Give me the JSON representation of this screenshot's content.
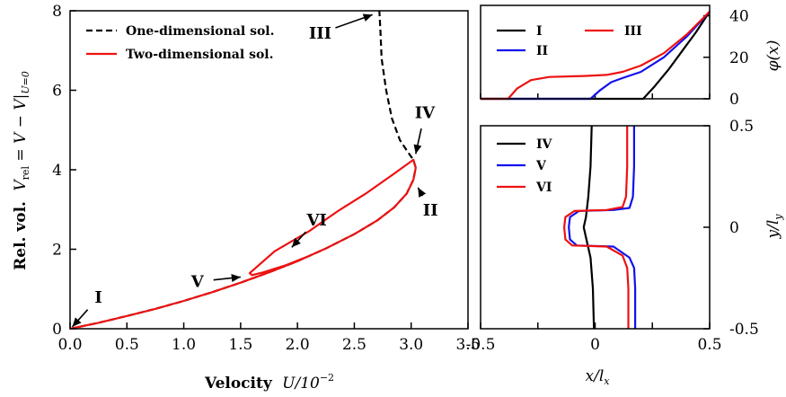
{
  "chart_data": [
    {
      "type": "line",
      "xlabel_bold": "Velocity",
      "xlabel_math": "U/10",
      "xlabel_exp": "−2",
      "ylabel_bold": "Rel. vol.",
      "ylabel_math": "V",
      "ylabel_sub": "rel",
      "ylabel_rest": " = V − V|",
      "ylabel_sub2": "U=0",
      "xlim": [
        0,
        3.5
      ],
      "ylim": [
        0,
        8
      ],
      "xticks": [
        "0.0",
        "0.5",
        "1.0",
        "1.5",
        "2.0",
        "2.5",
        "3.0",
        "3.5"
      ],
      "yticks": [
        "0",
        "2",
        "4",
        "6",
        "8"
      ],
      "legend": {
        "position": "top-left",
        "entries": [
          "One-dimensional sol.",
          "Two-dimensional sol."
        ]
      },
      "series": [
        {
          "name": "One-dimensional sol.",
          "color": "#000000",
          "dash": true,
          "points": [
            [
              0,
              0
            ],
            [
              0.25,
              0.15
            ],
            [
              0.5,
              0.32
            ],
            [
              0.75,
              0.5
            ],
            [
              1.0,
              0.7
            ],
            [
              1.25,
              0.92
            ],
            [
              1.5,
              1.16
            ],
            [
              1.75,
              1.42
            ],
            [
              2.0,
              1.7
            ],
            [
              2.25,
              2.02
            ],
            [
              2.5,
              2.38
            ],
            [
              2.7,
              2.72
            ],
            [
              2.85,
              3.05
            ],
            [
              2.96,
              3.4
            ],
            [
              3.02,
              3.75
            ],
            [
              3.04,
              4.05
            ],
            [
              3.02,
              4.25
            ],
            [
              2.97,
              4.45
            ],
            [
              2.9,
              4.75
            ],
            [
              2.83,
              5.3
            ],
            [
              2.78,
              6.0
            ],
            [
              2.74,
              6.8
            ],
            [
              2.73,
              7.5
            ],
            [
              2.72,
              8.0
            ]
          ]
        },
        {
          "name": "Two-dimensional sol.",
          "color": "#ee1111",
          "dash": false,
          "points": [
            [
              0,
              0
            ],
            [
              0.25,
              0.15
            ],
            [
              0.5,
              0.32
            ],
            [
              0.75,
              0.5
            ],
            [
              1.0,
              0.7
            ],
            [
              1.25,
              0.92
            ],
            [
              1.5,
              1.16
            ],
            [
              1.75,
              1.42
            ],
            [
              2.0,
              1.7
            ],
            [
              2.25,
              2.02
            ],
            [
              2.5,
              2.38
            ],
            [
              2.7,
              2.72
            ],
            [
              2.85,
              3.05
            ],
            [
              2.96,
              3.4
            ],
            [
              3.02,
              3.75
            ],
            [
              3.04,
              4.05
            ],
            [
              3.02,
              4.25
            ],
            [
              2.85,
              3.9
            ],
            [
              2.6,
              3.4
            ],
            [
              2.35,
              2.95
            ],
            [
              2.1,
              2.45
            ],
            [
              1.8,
              1.95
            ],
            [
              1.58,
              1.4
            ],
            [
              1.6,
              1.35
            ],
            [
              1.7,
              1.42
            ],
            [
              1.9,
              1.6
            ],
            [
              2.12,
              1.85
            ]
          ]
        }
      ],
      "annotations": [
        {
          "text": "I",
          "tx": 0.25,
          "ty": 0.65,
          "hx": 0.02,
          "hy": 0.05
        },
        {
          "text": "II",
          "tx": 3.17,
          "ty": 2.85,
          "hx": 3.06,
          "hy": 3.55
        },
        {
          "text": "III",
          "tx": 2.2,
          "ty": 7.3,
          "hx": 2.66,
          "hy": 7.9
        },
        {
          "text": "IV",
          "tx": 3.12,
          "ty": 5.3,
          "hx": 3.04,
          "hy": 4.4
        },
        {
          "text": "V",
          "tx": 1.12,
          "ty": 1.05,
          "hx": 1.5,
          "hy": 1.3
        },
        {
          "text": "VI",
          "tx": 2.17,
          "ty": 2.6,
          "hx": 1.95,
          "hy": 2.05
        }
      ]
    },
    {
      "type": "line",
      "ylabel": "φ(x)",
      "xlim": [
        -0.5,
        0.5
      ],
      "ylim": [
        0,
        45
      ],
      "yticks": [
        "0",
        "20",
        "40"
      ],
      "legend": {
        "position": "top-left",
        "entries": [
          "I",
          "II",
          "III"
        ]
      },
      "series": [
        {
          "name": "I",
          "color": "#000000",
          "points": [
            [
              -0.5,
              0
            ],
            [
              0.21,
              0
            ],
            [
              0.26,
              6
            ],
            [
              0.32,
              14
            ],
            [
              0.38,
              23
            ],
            [
              0.44,
              32
            ],
            [
              0.5,
              42
            ]
          ]
        },
        {
          "name": "II",
          "color": "#1111ee",
          "points": [
            [
              -0.5,
              0
            ],
            [
              -0.02,
              0
            ],
            [
              0.02,
              4
            ],
            [
              0.07,
              8
            ],
            [
              0.12,
              10
            ],
            [
              0.2,
              13
            ],
            [
              0.3,
              20
            ],
            [
              0.4,
              30
            ],
            [
              0.5,
              42
            ]
          ]
        },
        {
          "name": "III",
          "color": "#ee1111",
          "points": [
            [
              -0.5,
              0
            ],
            [
              -0.38,
              0
            ],
            [
              -0.34,
              5
            ],
            [
              -0.28,
              9
            ],
            [
              -0.2,
              10.5
            ],
            [
              -0.05,
              11
            ],
            [
              0.05,
              11.5
            ],
            [
              0.12,
              13
            ],
            [
              0.2,
              16
            ],
            [
              0.3,
              22
            ],
            [
              0.4,
              31
            ],
            [
              0.5,
              42
            ]
          ]
        }
      ]
    },
    {
      "type": "line",
      "xlabel": "x/l",
      "xlabel_sub": "x",
      "ylabel": "y/l",
      "ylabel_sub": "y",
      "xlim": [
        -0.5,
        0.5
      ],
      "ylim": [
        -0.5,
        0.5
      ],
      "xticks": [
        "-0.5",
        "0",
        "0.5"
      ],
      "yticks": [
        "0.5",
        "0",
        "-0.5"
      ],
      "legend": {
        "position": "top-left",
        "entries": [
          "IV",
          "V",
          "VI"
        ]
      },
      "series": [
        {
          "name": "IV",
          "color": "#000000",
          "points": [
            [
              -0.005,
              -0.5
            ],
            [
              -0.01,
              -0.3
            ],
            [
              -0.02,
              -0.15
            ],
            [
              -0.04,
              -0.05
            ],
            [
              -0.05,
              0
            ],
            [
              -0.04,
              0.05
            ],
            [
              -0.03,
              0.15
            ],
            [
              -0.02,
              0.3
            ],
            [
              -0.015,
              0.5
            ]
          ]
        },
        {
          "name": "V",
          "color": "#1111ee",
          "points": [
            [
              0.175,
              -0.5
            ],
            [
              0.175,
              -0.3
            ],
            [
              0.17,
              -0.2
            ],
            [
              0.15,
              -0.15
            ],
            [
              0.08,
              -0.095
            ],
            [
              -0.08,
              -0.09
            ],
            [
              -0.11,
              -0.06
            ],
            [
              -0.115,
              0
            ],
            [
              -0.11,
              0.05
            ],
            [
              -0.07,
              0.08
            ],
            [
              0.08,
              0.085
            ],
            [
              0.15,
              0.095
            ],
            [
              0.165,
              0.15
            ],
            [
              0.17,
              0.3
            ],
            [
              0.17,
              0.5
            ]
          ]
        },
        {
          "name": "VI",
          "color": "#ee1111",
          "points": [
            [
              0.145,
              -0.5
            ],
            [
              0.145,
              -0.3
            ],
            [
              0.14,
              -0.2
            ],
            [
              0.12,
              -0.14
            ],
            [
              0.05,
              -0.095
            ],
            [
              -0.1,
              -0.09
            ],
            [
              -0.13,
              -0.06
            ],
            [
              -0.135,
              0
            ],
            [
              -0.13,
              0.05
            ],
            [
              -0.09,
              0.08
            ],
            [
              0.05,
              0.085
            ],
            [
              0.12,
              0.1
            ],
            [
              0.135,
              0.15
            ],
            [
              0.14,
              0.3
            ],
            [
              0.14,
              0.5
            ]
          ]
        }
      ]
    }
  ]
}
